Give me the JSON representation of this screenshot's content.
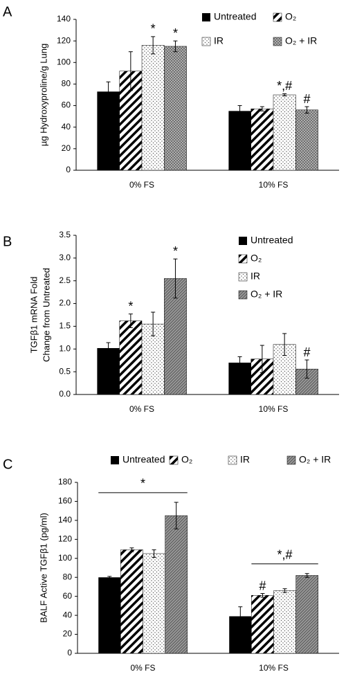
{
  "chart_data": [
    {
      "type": "bar",
      "panel_label": "A",
      "ylabel": [
        "µg Hydroxyproline/g Lung"
      ],
      "categories": [
        "0% FS",
        "10% FS"
      ],
      "ylim": [
        0,
        140
      ],
      "yticks": [
        0,
        20,
        40,
        60,
        80,
        100,
        120,
        140
      ],
      "legend": "upper-right",
      "legend_columns": 2,
      "series": [
        {
          "name": "Untreated",
          "color": "#000000",
          "pattern": "solid",
          "values": [
            73,
            55
          ],
          "errors": [
            9,
            5
          ],
          "annotations": [
            null,
            null
          ]
        },
        {
          "name": "O₂",
          "color": "#000000",
          "pattern": "diagonal",
          "values": [
            92,
            57
          ],
          "errors": [
            18,
            2
          ],
          "annotations": [
            null,
            null
          ]
        },
        {
          "name": "IR",
          "color": "#000000",
          "pattern": "dots",
          "values": [
            116,
            70
          ],
          "errors": [
            8,
            1
          ],
          "annotations": [
            "*",
            "*,#"
          ]
        },
        {
          "name": "O₂ + IR",
          "color": "#000000",
          "pattern": "crosshatch",
          "values": [
            115,
            56
          ],
          "errors": [
            5,
            3
          ],
          "annotations": [
            "*",
            "#"
          ]
        }
      ]
    },
    {
      "type": "bar",
      "panel_label": "B",
      "ylabel": [
        "TGFβ1 mRNA Fold",
        "Change from Untreated"
      ],
      "categories": [
        "0% FS",
        "10% FS"
      ],
      "ylim": [
        0,
        3.5
      ],
      "yticks": [
        {
          "value": 0,
          "label": "0.0"
        },
        0.5,
        {
          "value": 1,
          "label": "1.0"
        },
        1.5,
        {
          "value": 2,
          "label": "2.0"
        },
        2.5,
        {
          "value": 3,
          "label": "3.0"
        },
        3.5
      ],
      "legend": "upper-right",
      "legend_columns": 1,
      "series": [
        {
          "name": "Untreated",
          "color": "#000000",
          "pattern": "solid",
          "values": [
            1.02,
            0.7
          ],
          "errors": [
            0.12,
            0.13
          ],
          "annotations": [
            null,
            null
          ]
        },
        {
          "name": "O₂",
          "color": "#000000",
          "pattern": "diagonal",
          "values": [
            1.62,
            0.78
          ],
          "errors": [
            0.15,
            0.3
          ],
          "annotations": [
            "*",
            null
          ]
        },
        {
          "name": "IR",
          "color": "#000000",
          "pattern": "dots",
          "values": [
            1.55,
            1.1
          ],
          "errors": [
            0.26,
            0.24
          ],
          "annotations": [
            null,
            null
          ]
        },
        {
          "name": "O₂ + IR",
          "color": "#000000",
          "pattern": "dense",
          "values": [
            2.55,
            0.56
          ],
          "errors": [
            0.43,
            0.2
          ],
          "annotations": [
            "*",
            "#"
          ]
        }
      ]
    },
    {
      "type": "bar",
      "panel_label": "C",
      "ylabel": [
        "BALF Active TGFβ1 (pg/ml)"
      ],
      "categories": [
        "0% FS",
        "10% FS"
      ],
      "ylim": [
        0,
        180
      ],
      "yticks": [
        0,
        20,
        40,
        60,
        80,
        100,
        120,
        140,
        160,
        180
      ],
      "legend": "top",
      "legend_columns": 4,
      "series": [
        {
          "name": "Untreated",
          "color": "#000000",
          "pattern": "solid",
          "values": [
            80,
            39
          ],
          "errors": [
            1,
            10
          ],
          "annotations": [
            null,
            null
          ]
        },
        {
          "name": "O₂",
          "color": "#000000",
          "pattern": "diagonal",
          "values": [
            109,
            61
          ],
          "errors": [
            2,
            2
          ],
          "annotations": [
            null,
            "#"
          ]
        },
        {
          "name": "IR",
          "color": "#000000",
          "pattern": "dots",
          "values": [
            105,
            66
          ],
          "errors": [
            4,
            2
          ],
          "annotations": [
            null,
            null
          ]
        },
        {
          "name": "O₂ + IR",
          "color": "#000000",
          "pattern": "dense",
          "values": [
            145,
            82
          ],
          "errors": [
            14,
            2
          ],
          "annotations": [
            null,
            null
          ]
        }
      ],
      "brackets": [
        {
          "text": "*",
          "category": 0,
          "series": [
            0,
            3
          ]
        },
        {
          "text": "*,#",
          "category": 1,
          "series": [
            1,
            3
          ]
        }
      ]
    }
  ]
}
